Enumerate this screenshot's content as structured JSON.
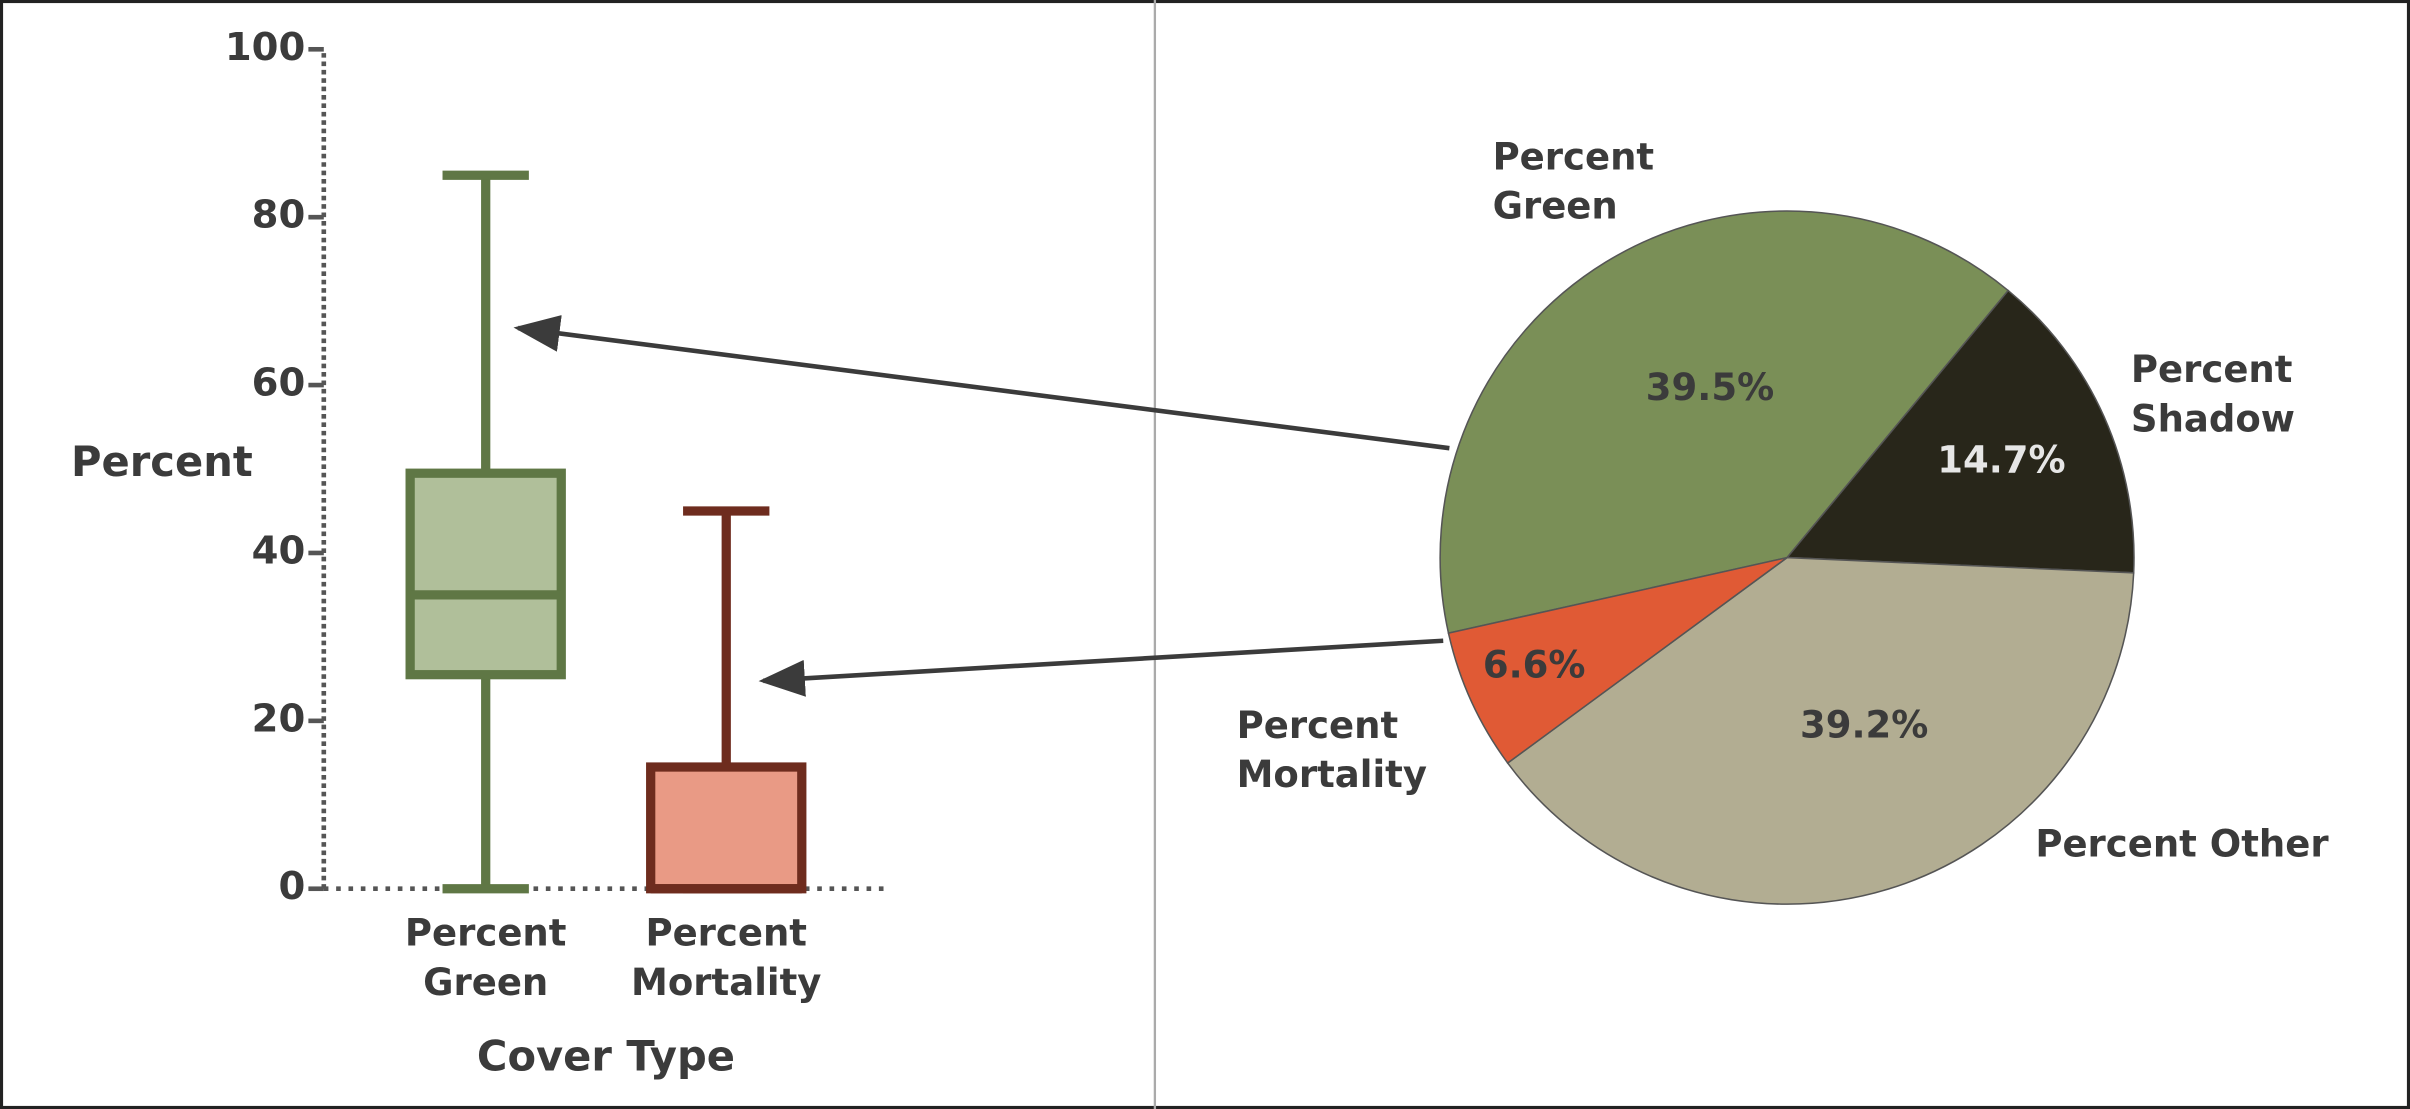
{
  "chart_data": [
    {
      "type": "box",
      "ylabel": "Percent",
      "xlabel": "Cover Type",
      "categories": [
        "Percent Green",
        "Percent Mortality"
      ],
      "boxes": [
        {
          "min": 0,
          "q1": 25.5,
          "median": 35,
          "q3": 49.5,
          "max": 85
        },
        {
          "min": 0,
          "q1": 0,
          "median": 0,
          "q3": 14.5,
          "max": 45
        }
      ],
      "fill_colors": [
        "#b0bf9a",
        "#e99a85"
      ],
      "edge_colors": [
        "#5f7745",
        "#6e2c1e"
      ],
      "ylim": [
        0,
        100
      ],
      "yticks": [
        0,
        20,
        40,
        60,
        80,
        100
      ]
    },
    {
      "type": "pie",
      "categories": [
        "Percent Green",
        "Percent Shadow",
        "Percent Other",
        "Percent Mortality"
      ],
      "values": [
        39.5,
        14.7,
        39.2,
        6.6
      ],
      "value_labels": [
        "39.5%",
        "14.7%",
        "39.2%",
        "6.6%"
      ],
      "colors": [
        "#7a8f57",
        "#28261a",
        "#b2ad92",
        "#e05a35"
      ]
    }
  ]
}
